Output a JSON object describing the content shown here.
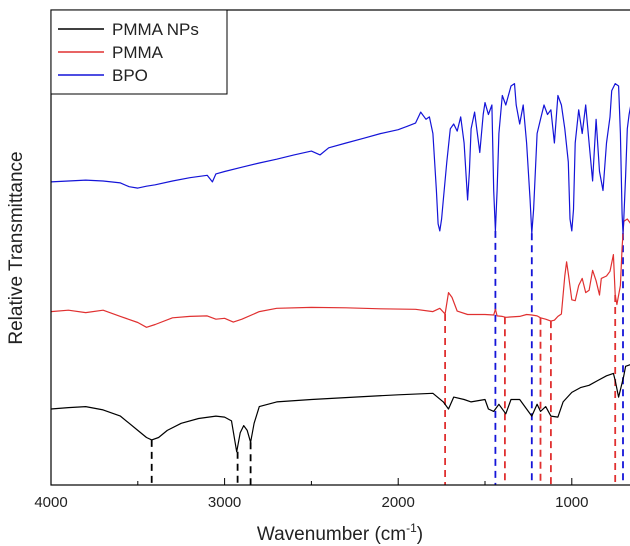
{
  "chart_data": {
    "type": "line",
    "xlabel": "Wavenumber (cm",
    "xlabel_sup": "-1",
    "xlabel_close": ")",
    "ylabel": "Relative Transmittance",
    "xlim": [
      4000,
      630
    ],
    "x_reversed": true,
    "ylim": [
      0,
      100
    ],
    "y_tick_labels": false,
    "x_ticks": [
      4000,
      3000,
      2000,
      1000
    ],
    "x_tick_labels": [
      "4000",
      "3000",
      "2000",
      "1000"
    ],
    "grid": false,
    "legend_position": "top-left",
    "series": [
      {
        "name": "PMMA NPs",
        "color": "#000000",
        "points": [
          [
            4000,
            16
          ],
          [
            3900,
            16.3
          ],
          [
            3800,
            16.5
          ],
          [
            3700,
            15.8
          ],
          [
            3600,
            14.5
          ],
          [
            3500,
            11.5
          ],
          [
            3450,
            10
          ],
          [
            3420,
            9.5
          ],
          [
            3380,
            10
          ],
          [
            3330,
            11.5
          ],
          [
            3250,
            13
          ],
          [
            3150,
            14
          ],
          [
            3050,
            14.5
          ],
          [
            3000,
            14.3
          ],
          [
            2960,
            13.5
          ],
          [
            2930,
            7
          ],
          [
            2910,
            11
          ],
          [
            2890,
            12.5
          ],
          [
            2870,
            11.5
          ],
          [
            2850,
            9
          ],
          [
            2830,
            13
          ],
          [
            2800,
            16.5
          ],
          [
            2700,
            17.5
          ],
          [
            2500,
            18
          ],
          [
            2200,
            18.6
          ],
          [
            2000,
            19
          ],
          [
            1800,
            19.3
          ],
          [
            1740,
            17.5
          ],
          [
            1710,
            16
          ],
          [
            1680,
            18.5
          ],
          [
            1620,
            18
          ],
          [
            1580,
            17.5
          ],
          [
            1500,
            18
          ],
          [
            1480,
            16
          ],
          [
            1450,
            15.5
          ],
          [
            1420,
            17
          ],
          [
            1380,
            15
          ],
          [
            1350,
            18
          ],
          [
            1300,
            18
          ],
          [
            1260,
            16
          ],
          [
            1230,
            14.5
          ],
          [
            1200,
            17
          ],
          [
            1180,
            15.5
          ],
          [
            1150,
            16.5
          ],
          [
            1120,
            14.5
          ],
          [
            1080,
            14.3
          ],
          [
            1050,
            17.5
          ],
          [
            1000,
            19.5
          ],
          [
            950,
            20.5
          ],
          [
            900,
            21
          ],
          [
            850,
            22
          ],
          [
            800,
            23
          ],
          [
            760,
            23.5
          ],
          [
            750,
            22
          ],
          [
            730,
            18.5
          ],
          [
            710,
            21.5
          ],
          [
            700,
            23
          ],
          [
            690,
            25
          ],
          [
            650,
            25.5
          ],
          [
            630,
            25.5
          ]
        ]
      },
      {
        "name": "PMMA",
        "color": "#e03030",
        "points": [
          [
            4000,
            36.5
          ],
          [
            3900,
            36.8
          ],
          [
            3800,
            36.3
          ],
          [
            3700,
            36.8
          ],
          [
            3600,
            35.5
          ],
          [
            3500,
            34.2
          ],
          [
            3450,
            33.2
          ],
          [
            3400,
            33.8
          ],
          [
            3300,
            35.2
          ],
          [
            3200,
            35.5
          ],
          [
            3100,
            35.6
          ],
          [
            3050,
            34.9
          ],
          [
            3000,
            35.1
          ],
          [
            2950,
            34.3
          ],
          [
            2900,
            34.9
          ],
          [
            2800,
            36.5
          ],
          [
            2700,
            37.2
          ],
          [
            2500,
            37.4
          ],
          [
            2300,
            37.3
          ],
          [
            2100,
            37.1
          ],
          [
            1900,
            37
          ],
          [
            1800,
            36.5
          ],
          [
            1760,
            37.2
          ],
          [
            1730,
            36
          ],
          [
            1710,
            40.5
          ],
          [
            1690,
            39.5
          ],
          [
            1660,
            36.6
          ],
          [
            1600,
            35.9
          ],
          [
            1500,
            35.9
          ],
          [
            1450,
            35.8
          ],
          [
            1440,
            37
          ],
          [
            1430,
            35.6
          ],
          [
            1400,
            35.5
          ],
          [
            1380,
            35.3
          ],
          [
            1300,
            35.5
          ],
          [
            1260,
            35.9
          ],
          [
            1230,
            35.8
          ],
          [
            1200,
            35.6
          ],
          [
            1180,
            35.2
          ],
          [
            1150,
            34.9
          ],
          [
            1120,
            34.5
          ],
          [
            1100,
            34.7
          ],
          [
            1080,
            35.5
          ],
          [
            1060,
            36
          ],
          [
            1040,
            44
          ],
          [
            1030,
            47
          ],
          [
            1020,
            44.5
          ],
          [
            1000,
            39
          ],
          [
            980,
            38.8
          ],
          [
            960,
            42
          ],
          [
            940,
            43.5
          ],
          [
            920,
            40.5
          ],
          [
            900,
            41
          ],
          [
            880,
            45.2
          ],
          [
            860,
            43
          ],
          [
            840,
            40
          ],
          [
            830,
            43.5
          ],
          [
            800,
            44
          ],
          [
            780,
            45
          ],
          [
            760,
            48.5
          ],
          [
            750,
            40
          ],
          [
            740,
            38
          ],
          [
            720,
            42
          ],
          [
            710,
            50
          ],
          [
            700,
            55.5
          ],
          [
            680,
            56
          ],
          [
            660,
            55
          ],
          [
            640,
            55
          ],
          [
            630,
            55.2
          ]
        ]
      },
      {
        "name": "BPO",
        "color": "#1414d8",
        "points": [
          [
            4000,
            63.8
          ],
          [
            3900,
            64
          ],
          [
            3800,
            64.2
          ],
          [
            3700,
            64
          ],
          [
            3600,
            63.6
          ],
          [
            3550,
            62.8
          ],
          [
            3500,
            62.5
          ],
          [
            3450,
            62.9
          ],
          [
            3400,
            63.2
          ],
          [
            3300,
            64
          ],
          [
            3200,
            64.7
          ],
          [
            3100,
            65.2
          ],
          [
            3070,
            63.8
          ],
          [
            3050,
            65.5
          ],
          [
            3000,
            66
          ],
          [
            2900,
            66.9
          ],
          [
            2800,
            67.8
          ],
          [
            2700,
            68.6
          ],
          [
            2600,
            69.5
          ],
          [
            2500,
            70.3
          ],
          [
            2450,
            69.5
          ],
          [
            2400,
            71
          ],
          [
            2300,
            72
          ],
          [
            2200,
            73
          ],
          [
            2100,
            74
          ],
          [
            2000,
            74.8
          ],
          [
            1950,
            75.5
          ],
          [
            1900,
            76.2
          ],
          [
            1870,
            78.5
          ],
          [
            1840,
            77
          ],
          [
            1820,
            77.5
          ],
          [
            1800,
            74
          ],
          [
            1780,
            62
          ],
          [
            1770,
            55
          ],
          [
            1760,
            53.5
          ],
          [
            1750,
            56
          ],
          [
            1740,
            60
          ],
          [
            1720,
            68
          ],
          [
            1700,
            75
          ],
          [
            1680,
            76
          ],
          [
            1660,
            74.5
          ],
          [
            1640,
            77.5
          ],
          [
            1620,
            72
          ],
          [
            1600,
            60
          ],
          [
            1590,
            66
          ],
          [
            1580,
            75
          ],
          [
            1560,
            78.5
          ],
          [
            1530,
            70
          ],
          [
            1510,
            78
          ],
          [
            1500,
            80.5
          ],
          [
            1480,
            78
          ],
          [
            1460,
            80
          ],
          [
            1450,
            62
          ],
          [
            1440,
            53.5
          ],
          [
            1430,
            62
          ],
          [
            1420,
            74
          ],
          [
            1400,
            82
          ],
          [
            1380,
            80
          ],
          [
            1350,
            84
          ],
          [
            1330,
            84.5
          ],
          [
            1320,
            80
          ],
          [
            1300,
            76
          ],
          [
            1280,
            80
          ],
          [
            1260,
            72
          ],
          [
            1240,
            60
          ],
          [
            1230,
            53
          ],
          [
            1220,
            58
          ],
          [
            1200,
            74
          ],
          [
            1180,
            77
          ],
          [
            1160,
            80
          ],
          [
            1140,
            78
          ],
          [
            1120,
            79
          ],
          [
            1100,
            72
          ],
          [
            1080,
            82
          ],
          [
            1060,
            80
          ],
          [
            1040,
            75
          ],
          [
            1020,
            68
          ],
          [
            1010,
            56
          ],
          [
            1000,
            53.5
          ],
          [
            990,
            58
          ],
          [
            980,
            72
          ],
          [
            960,
            79
          ],
          [
            940,
            74
          ],
          [
            920,
            80
          ],
          [
            900,
            72
          ],
          [
            880,
            64
          ],
          [
            860,
            77
          ],
          [
            840,
            66
          ],
          [
            820,
            62
          ],
          [
            800,
            72
          ],
          [
            780,
            77.5
          ],
          [
            770,
            83
          ],
          [
            750,
            84.5
          ],
          [
            730,
            84
          ],
          [
            720,
            74
          ],
          [
            710,
            57
          ],
          [
            705,
            53
          ],
          [
            700,
            56
          ],
          [
            690,
            65
          ],
          [
            680,
            75
          ],
          [
            670,
            78
          ],
          [
            660,
            80
          ],
          [
            640,
            82
          ],
          [
            630,
            80
          ]
        ]
      }
    ],
    "reference_lines": [
      {
        "x": 3420,
        "color": "#000000",
        "from": 9.5
      },
      {
        "x": 2925,
        "color": "#000000",
        "from": 7
      },
      {
        "x": 2850,
        "color": "#000000",
        "from": 9
      },
      {
        "x": 1730,
        "color": "#e03030",
        "from": 36
      },
      {
        "x": 1440,
        "color": "#1414d8",
        "from": 53.5
      },
      {
        "x": 1385,
        "color": "#e03030",
        "from": 35.3
      },
      {
        "x": 1230,
        "color": "#1414d8",
        "from": 53
      },
      {
        "x": 1180,
        "color": "#e03030",
        "from": 35.2
      },
      {
        "x": 1120,
        "color": "#e03030",
        "from": 34.5
      },
      {
        "x": 750,
        "color": "#e03030",
        "from": 40
      },
      {
        "x": 705,
        "color": "#1414d8",
        "from": 53
      }
    ]
  }
}
